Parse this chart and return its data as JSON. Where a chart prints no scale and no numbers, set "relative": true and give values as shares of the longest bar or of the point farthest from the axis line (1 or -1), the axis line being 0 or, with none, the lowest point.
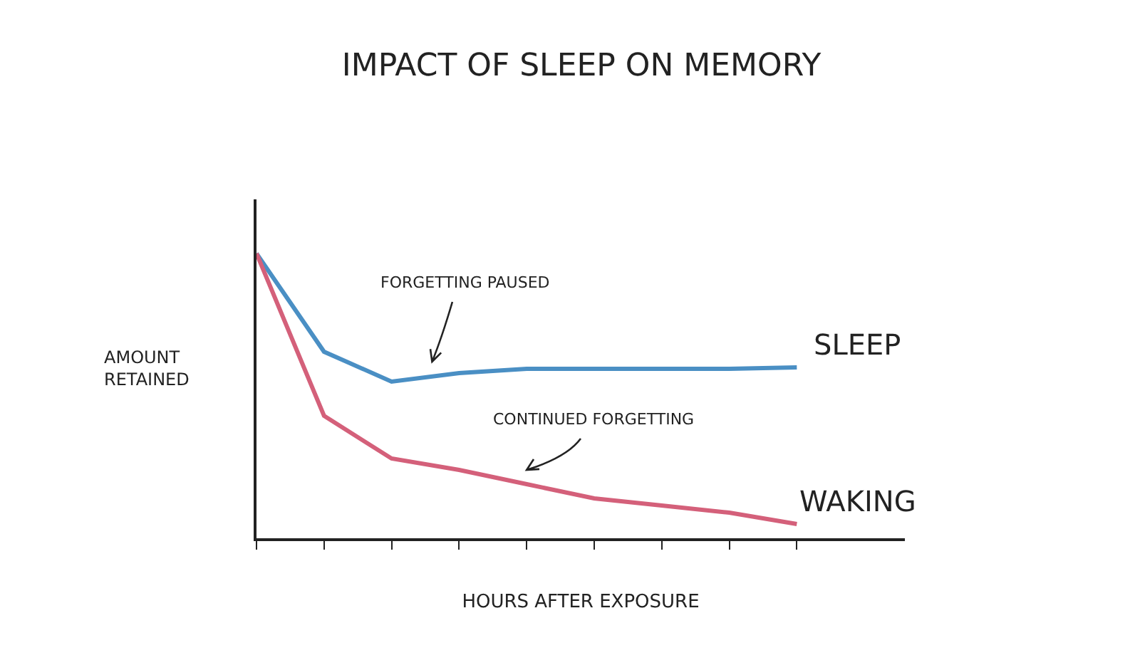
{
  "chart_data": {
    "type": "line",
    "title": "IMPACT OF SLEEP ON MEMORY",
    "xlabel": "HOURS AFTER EXPOSURE",
    "ylabel": "AMOUNT RETAINED",
    "relative": true,
    "categories": [
      null,
      null,
      null,
      null,
      null,
      null,
      null,
      null,
      null
    ],
    "series": [
      {
        "name": "SLEEP",
        "color": "#4a8fc4",
        "values": [
          1,
          0.655,
          0.55,
          0.58,
          0.595,
          0.595,
          0.595,
          0.595,
          0.6
        ]
      },
      {
        "name": "WAKING",
        "color": "#d4607a",
        "values": [
          1,
          0.43,
          0.28,
          0.24,
          0.19,
          0.14,
          0.115,
          0.09,
          0.05
        ]
      }
    ],
    "annotations": [
      "FORGETTING PAUSED",
      "CONTINUED FORGETTING"
    ],
    "grid": false,
    "legend": false,
    "marker": "none",
    "line_style": "solid"
  }
}
